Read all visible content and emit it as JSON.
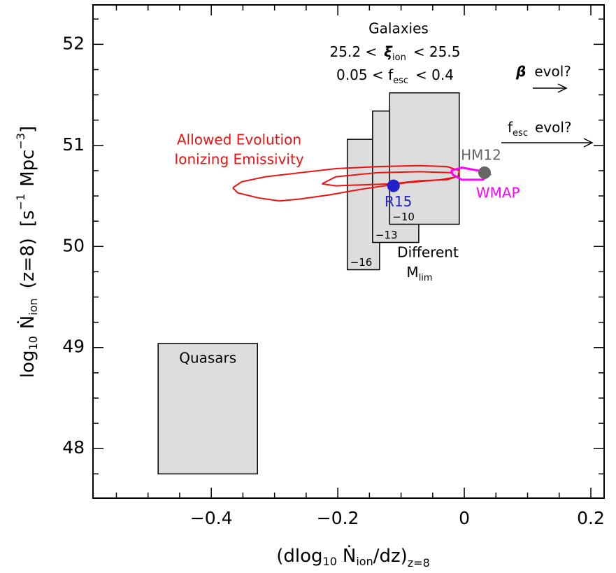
{
  "chart_data": {
    "type": "scatter",
    "xlim": [
      -0.587,
      0.221
    ],
    "ylim": [
      47.51,
      52.39
    ],
    "xticks": [
      {
        "value": -0.4,
        "label": "−0.4"
      },
      {
        "value": -0.2,
        "label": "−0.2"
      },
      0,
      0.2
    ],
    "yticks": [
      48,
      49,
      50,
      51,
      52
    ],
    "xminorticks": [
      -0.55,
      -0.5,
      -0.45,
      -0.35,
      -0.3,
      -0.25,
      -0.15,
      -0.1,
      -0.05,
      0.05,
      0.1,
      0.15
    ],
    "yminorticks": [
      47.75,
      48.25,
      48.5,
      48.75,
      49.25,
      49.5,
      49.75,
      50.25,
      50.5,
      50.75,
      51.25,
      51.5,
      51.75,
      52.25
    ],
    "xlabel": [
      "(dlog",
      "10",
      "Ṅ",
      "ion",
      "/dz)",
      "z=8"
    ],
    "ylabel": [
      "log",
      "10",
      "Ṅ",
      "ion",
      "(z=8)",
      "[s",
      "−1",
      "Mpc",
      "−3",
      "]"
    ],
    "rectangles": [
      {
        "label": "Quasars",
        "x0": -0.484,
        "x1": -0.327,
        "y0": 47.75,
        "y1": 49.04,
        "color": "#dddddd"
      },
      {
        "label": "−16",
        "x0": -0.185,
        "x1": -0.134,
        "y0": 49.77,
        "y1": 51.06,
        "color": "#dddddd"
      },
      {
        "label": "−13",
        "x0": -0.145,
        "x1": -0.072,
        "y0": 50.04,
        "y1": 51.34,
        "color": "#dddddd"
      },
      {
        "label": "−10",
        "x0": -0.118,
        "x1": -0.008,
        "y0": 50.22,
        "y1": 51.52,
        "color": "#dddddd"
      }
    ],
    "contours": [
      {
        "color": "#ee1111",
        "x": [
          -0.366,
          -0.352,
          -0.314,
          -0.259,
          -0.203,
          -0.137,
          -0.071,
          -0.027,
          -0.008,
          -0.01,
          -0.038,
          -0.093,
          -0.159,
          -0.214,
          -0.259,
          -0.292,
          -0.325,
          -0.358,
          -0.366
        ],
        "y": [
          50.58,
          50.64,
          50.69,
          50.73,
          50.77,
          50.79,
          50.8,
          50.79,
          50.75,
          50.69,
          50.66,
          50.63,
          50.57,
          50.51,
          50.47,
          50.45,
          50.48,
          50.53,
          50.58
        ]
      },
      {
        "color": "#ee1111",
        "x": [
          -0.225,
          -0.203,
          -0.137,
          -0.071,
          -0.021,
          -0.013,
          -0.027,
          -0.071,
          -0.115,
          -0.159,
          -0.203,
          -0.225
        ],
        "y": [
          50.62,
          50.69,
          50.73,
          50.74,
          50.73,
          50.69,
          50.66,
          50.65,
          50.62,
          50.61,
          50.6,
          50.62
        ]
      },
      {
        "name": "WMAP",
        "color": "#ff00ff",
        "x": [
          -0.021,
          -0.004,
          0.023,
          0.04,
          0.029,
          -0.004,
          -0.018,
          -0.021
        ],
        "y": [
          50.75,
          50.78,
          50.75,
          50.71,
          50.66,
          50.66,
          50.71,
          50.75
        ]
      }
    ],
    "points": [
      {
        "name": "R15",
        "x": -0.112,
        "y": 50.6,
        "color": "#2222c8"
      },
      {
        "name": "HM12",
        "x": 0.032,
        "y": 50.73,
        "color": "#666666"
      }
    ],
    "annotations": {
      "galaxies": "Galaxies",
      "xi_range": [
        "25.2 <",
        "ξ",
        "ion",
        "< 25.5"
      ],
      "fesc_range": [
        "0.05 < f",
        "esc",
        "< 0.4"
      ],
      "beta_evol": [
        "β",
        "evol?"
      ],
      "fesc_evol": [
        "f",
        "esc",
        "evol?"
      ],
      "allowed": [
        "Allowed Evolution",
        "Ionizing Emissivity"
      ],
      "mlim": [
        "Different",
        "M",
        "lim"
      ]
    }
  }
}
